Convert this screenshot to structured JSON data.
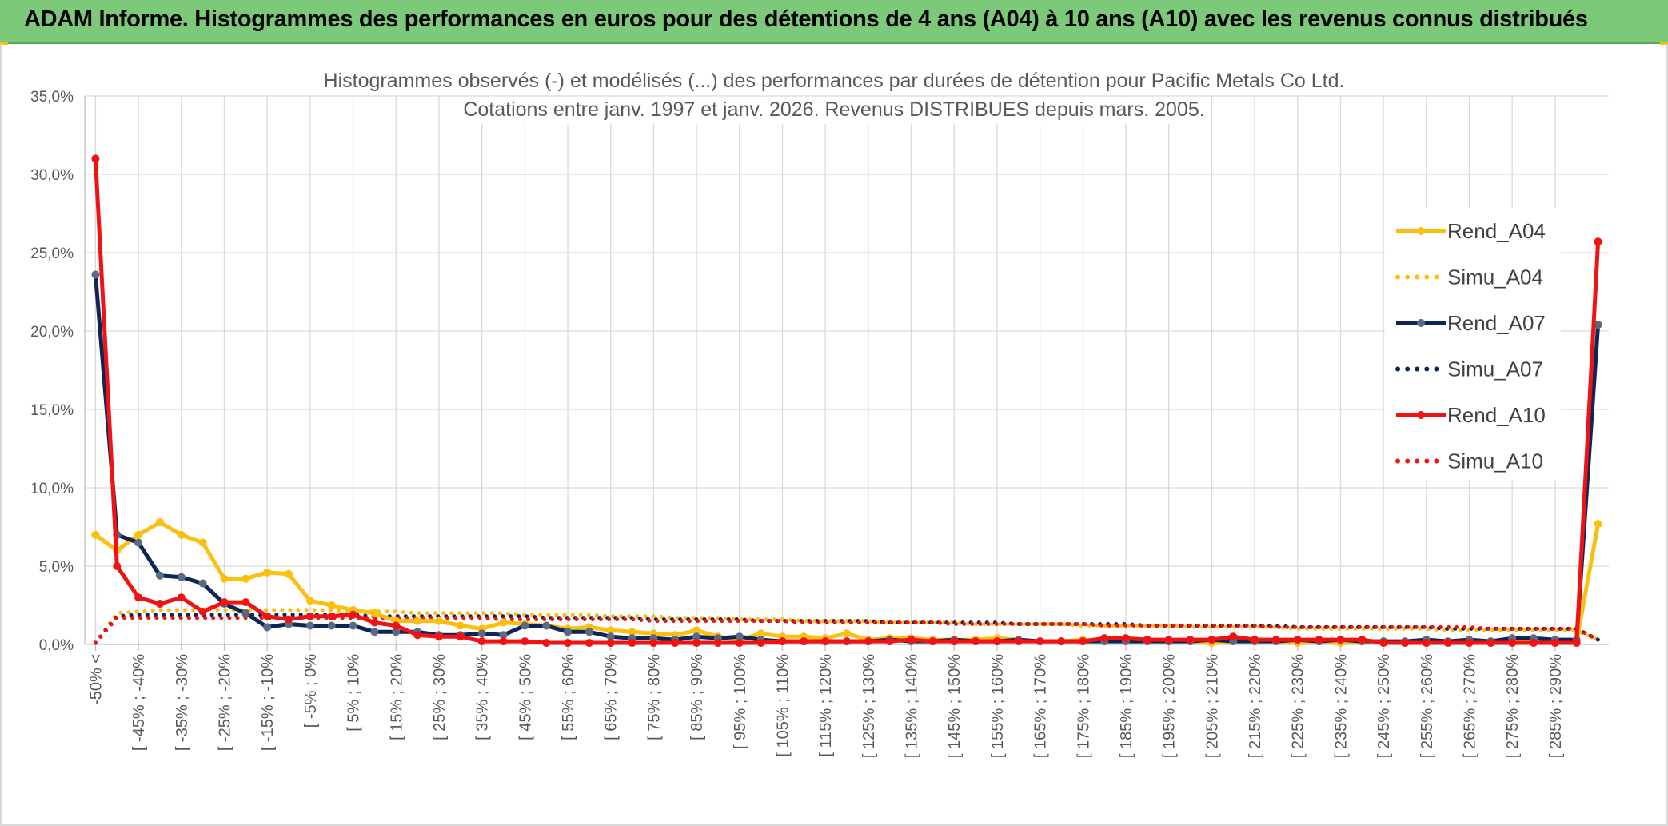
{
  "banner": {
    "title": "ADAM Informe. Histogrammes des performances en euros pour des détentions de 4 ans (A04) à 10 ans (A10) avec les revenus connus distribués"
  },
  "colors": {
    "banner_bg": "#7dc97a",
    "A04": "#fbbf0f",
    "A07": "#0e2557",
    "A07_marker": "#5a6a82",
    "A10": "#f01313",
    "grid": "#d9d9d9"
  },
  "chart_data": {
    "type": "line",
    "title": "Histogrammes observés (-) et modélisés (...) des performances par durées de détention pour Pacific Metals Co Ltd.",
    "subtitle": "Cotations entre janv. 1997 et janv. 2026.  Revenus DISTRIBUES depuis mars. 2005.",
    "ylim": [
      0,
      35
    ],
    "y_ticks": [
      "0,0%",
      "5,0%",
      "10,0%",
      "15,0%",
      "20,0%",
      "25,0%",
      "30,0%",
      "35,0%"
    ],
    "grid": true,
    "legend_position": "right",
    "x_labels": [
      "-50% <",
      "[ -45% ; -40%",
      "[ -35% ; -30%",
      "[ -25% ; -20%",
      "[ -15% ; -10%",
      "[ -5% ; 0%",
      "[ 5% ; 10%",
      "[ 15% ; 20%",
      "[ 25% ; 30%",
      "[ 35% ; 40%",
      "[ 45% ; 50%",
      "[ 55% ; 60%",
      "[ 65% ; 70%",
      "[ 75% ; 80%",
      "[ 85% ; 90%",
      "[ 95% ; 100%",
      "[ 105% ; 110%",
      "[ 115% ; 120%",
      "[ 125% ; 130%",
      "[ 135% ; 140%",
      "[ 145% ; 150%",
      "[ 155% ; 160%",
      "[ 165% ; 170%",
      "[ 175% ; 180%",
      "[ 185% ; 190%",
      "[ 195% ; 200%",
      "[ 205% ; 210%",
      "[ 215% ; 220%",
      "[ 225% ; 230%",
      "[ 235% ; 240%",
      "[ 245% ; 250%",
      "[ 255% ; 260%",
      "[ 265% ; 270%",
      "[ 275% ; 280%",
      "[ 285% ; 290%"
    ],
    "series": [
      {
        "name": "Rend_A04",
        "style": "solid",
        "values": [
          7.0,
          6.0,
          7.0,
          7.8,
          7.0,
          6.5,
          4.2,
          4.2,
          4.6,
          4.5,
          2.8,
          2.5,
          2.2,
          2.0,
          1.5,
          1.5,
          1.5,
          1.2,
          1.0,
          1.4,
          1.3,
          1.2,
          1.0,
          1.1,
          0.9,
          0.8,
          0.7,
          0.6,
          0.9,
          0.5,
          0.3,
          0.7,
          0.5,
          0.5,
          0.4,
          0.7,
          0.3,
          0.4,
          0.4,
          0.3,
          0.3,
          0.3,
          0.4,
          0.3,
          0.2,
          0.2,
          0.3,
          0.2,
          0.2,
          0.2,
          0.2,
          0.2,
          0.1,
          0.2,
          0.2,
          0.2,
          0.1,
          0.2,
          0.1,
          0.2,
          0.2,
          0.1,
          0.1,
          0.2,
          0.1,
          0.2,
          0.2,
          0.2,
          0.1,
          0.2,
          7.7
        ]
      },
      {
        "name": "Simu_A04",
        "style": "dotted",
        "values": [
          0.1,
          2.0,
          2.1,
          2.2,
          2.2,
          2.2,
          2.2,
          2.2,
          2.2,
          2.2,
          2.2,
          2.2,
          2.1,
          2.1,
          2.1,
          2.0,
          2.0,
          2.0,
          2.0,
          2.0,
          1.9,
          1.9,
          1.9,
          1.9,
          1.8,
          1.8,
          1.8,
          1.7,
          1.7,
          1.7,
          1.6,
          1.6,
          1.6,
          1.5,
          1.5,
          1.5,
          1.5,
          1.4,
          1.4,
          1.4,
          1.4,
          1.3,
          1.3,
          1.3,
          1.3,
          1.3,
          1.2,
          1.2,
          1.2,
          1.2,
          1.2,
          1.1,
          1.1,
          1.1,
          1.1,
          1.1,
          1.0,
          1.0,
          1.0,
          1.0,
          1.0,
          1.0,
          1.0,
          0.9,
          0.9,
          0.9,
          0.9,
          0.9,
          0.9,
          0.9,
          0.3
        ]
      },
      {
        "name": "Rend_A07",
        "style": "solid",
        "values": [
          23.6,
          7.0,
          6.5,
          4.4,
          4.3,
          3.9,
          2.6,
          2.0,
          1.1,
          1.3,
          1.2,
          1.2,
          1.2,
          0.8,
          0.8,
          0.8,
          0.6,
          0.6,
          0.7,
          0.6,
          1.2,
          1.2,
          0.8,
          0.8,
          0.5,
          0.4,
          0.4,
          0.3,
          0.5,
          0.4,
          0.5,
          0.3,
          0.2,
          0.2,
          0.2,
          0.2,
          0.2,
          0.3,
          0.2,
          0.2,
          0.3,
          0.2,
          0.2,
          0.3,
          0.2,
          0.2,
          0.2,
          0.2,
          0.2,
          0.2,
          0.2,
          0.2,
          0.3,
          0.2,
          0.2,
          0.2,
          0.3,
          0.2,
          0.3,
          0.2,
          0.2,
          0.2,
          0.3,
          0.2,
          0.3,
          0.2,
          0.4,
          0.4,
          0.3,
          0.3,
          20.4
        ]
      },
      {
        "name": "Simu_A07",
        "style": "dotted",
        "values": [
          0.1,
          1.8,
          1.9,
          1.9,
          1.9,
          1.9,
          1.9,
          1.9,
          1.9,
          1.9,
          1.9,
          1.9,
          1.9,
          1.8,
          1.8,
          1.8,
          1.8,
          1.8,
          1.8,
          1.8,
          1.8,
          1.7,
          1.7,
          1.7,
          1.7,
          1.7,
          1.6,
          1.6,
          1.6,
          1.6,
          1.6,
          1.5,
          1.5,
          1.5,
          1.5,
          1.5,
          1.5,
          1.4,
          1.4,
          1.4,
          1.4,
          1.4,
          1.4,
          1.3,
          1.3,
          1.3,
          1.3,
          1.3,
          1.3,
          1.2,
          1.2,
          1.2,
          1.2,
          1.2,
          1.2,
          1.2,
          1.1,
          1.1,
          1.1,
          1.1,
          1.1,
          1.1,
          1.1,
          1.0,
          1.0,
          1.0,
          1.0,
          1.0,
          1.0,
          1.0,
          0.3
        ]
      },
      {
        "name": "Rend_A10",
        "style": "solid",
        "values": [
          31.0,
          5.0,
          3.0,
          2.6,
          3.0,
          2.1,
          2.7,
          2.7,
          1.8,
          1.6,
          1.8,
          1.8,
          1.9,
          1.4,
          1.2,
          0.6,
          0.5,
          0.5,
          0.2,
          0.2,
          0.2,
          0.1,
          0.1,
          0.1,
          0.1,
          0.1,
          0.1,
          0.1,
          0.1,
          0.1,
          0.1,
          0.1,
          0.2,
          0.2,
          0.2,
          0.2,
          0.2,
          0.2,
          0.3,
          0.2,
          0.2,
          0.2,
          0.2,
          0.2,
          0.2,
          0.2,
          0.2,
          0.4,
          0.4,
          0.3,
          0.3,
          0.3,
          0.3,
          0.5,
          0.3,
          0.3,
          0.3,
          0.3,
          0.3,
          0.3,
          0.1,
          0.1,
          0.1,
          0.1,
          0.1,
          0.1,
          0.1,
          0.1,
          0.1,
          0.1,
          25.7
        ]
      },
      {
        "name": "Simu_A10",
        "style": "dotted",
        "values": [
          0.1,
          1.7,
          1.7,
          1.7,
          1.7,
          1.7,
          1.7,
          1.7,
          1.7,
          1.7,
          1.7,
          1.7,
          1.7,
          1.7,
          1.7,
          1.7,
          1.7,
          1.7,
          1.7,
          1.6,
          1.6,
          1.6,
          1.6,
          1.6,
          1.6,
          1.6,
          1.5,
          1.5,
          1.5,
          1.5,
          1.5,
          1.5,
          1.5,
          1.4,
          1.4,
          1.4,
          1.4,
          1.4,
          1.4,
          1.4,
          1.3,
          1.3,
          1.3,
          1.3,
          1.3,
          1.3,
          1.3,
          1.2,
          1.2,
          1.2,
          1.2,
          1.2,
          1.2,
          1.2,
          1.2,
          1.1,
          1.1,
          1.1,
          1.1,
          1.1,
          1.1,
          1.1,
          1.1,
          1.1,
          1.1,
          1.0,
          1.0,
          1.0,
          1.0,
          1.0,
          0.3
        ]
      }
    ]
  }
}
